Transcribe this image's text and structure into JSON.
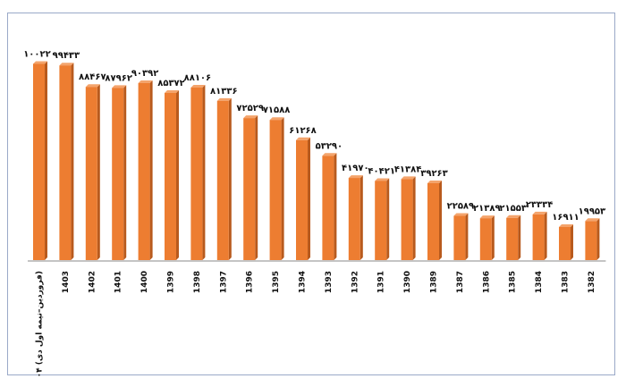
{
  "chart_data": {
    "type": "bar",
    "categories": [
      "۱۴۰۴ (فروردین–نیمه اول دی)",
      "1403",
      "1402",
      "1401",
      "1400",
      "1399",
      "1398",
      "1397",
      "1396",
      "1395",
      "1394",
      "1393",
      "1392",
      "1391",
      "1390",
      "1389",
      "1387",
      "1386",
      "1385",
      "1384",
      "1383",
      "1382"
    ],
    "values": [
      100220,
      99433,
      88467,
      87962,
      90392,
      85372,
      88106,
      81336,
      72529,
      71588,
      61268,
      53290,
      41970,
      40421,
      41384,
      39263,
      22589,
      21389,
      21553,
      23334,
      16911,
      19953
    ],
    "value_labels": [
      "۱۰۰۲۲۰",
      "۹۹۴۳۳",
      "۸۸۴۶۷",
      "۸۷۹۶۲",
      "۹۰۳۹۲",
      "۸۵۳۷۲",
      "۸۸۱۰۶",
      "۸۱۳۳۶",
      "۷۲۵۲۹",
      "۷۱۵۸۸",
      "۶۱۲۶۸",
      "۵۳۲۹۰",
      "۴۱۹۷۰",
      "۴۰۴۲۱",
      "۴۱۳۸۴",
      "۳۹۲۶۳",
      "۲۲۵۸۹",
      "۲۱۳۸۹",
      "۲۱۵۵۳",
      "۲۳۳۳۴",
      "۱۶۹۱۱",
      "۱۹۹۵۳"
    ],
    "ylim": [
      0,
      105000
    ],
    "grid": false,
    "legend": "none",
    "bar_color": "#ed7d31",
    "bar_side_color": "#b85a1d",
    "bar_top_color": "#f4a46c",
    "axis_color": "#8a8a8a"
  }
}
